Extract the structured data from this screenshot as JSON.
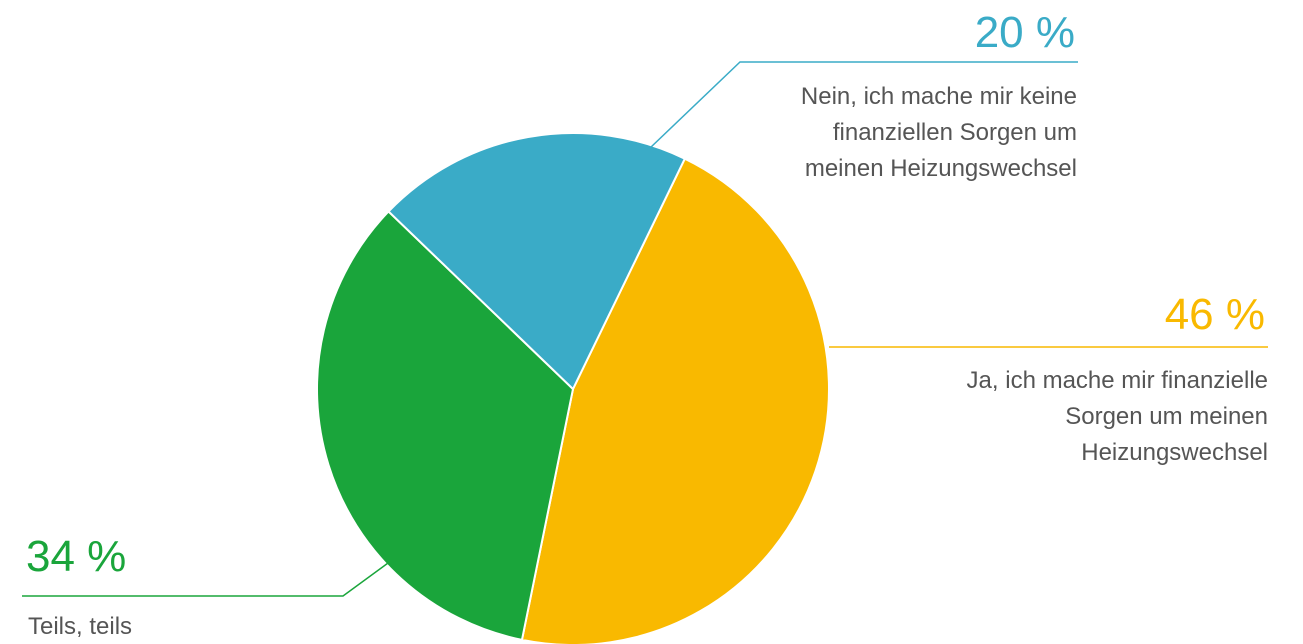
{
  "chart_data": {
    "type": "pie",
    "categories": [
      "Ja, ich mache mir finanzielle Sorgen um meinen Heizungswechsel",
      "Teils, teils",
      "Nein, ich mache mir keine finanziellen Sorgen um meinen Heizungswechsel"
    ],
    "values": [
      46,
      34,
      20
    ],
    "value_labels": [
      "46 %",
      "34 %",
      "20 %"
    ],
    "colors": [
      "#f9b900",
      "#1aa53b",
      "#3aabc7"
    ]
  }
}
